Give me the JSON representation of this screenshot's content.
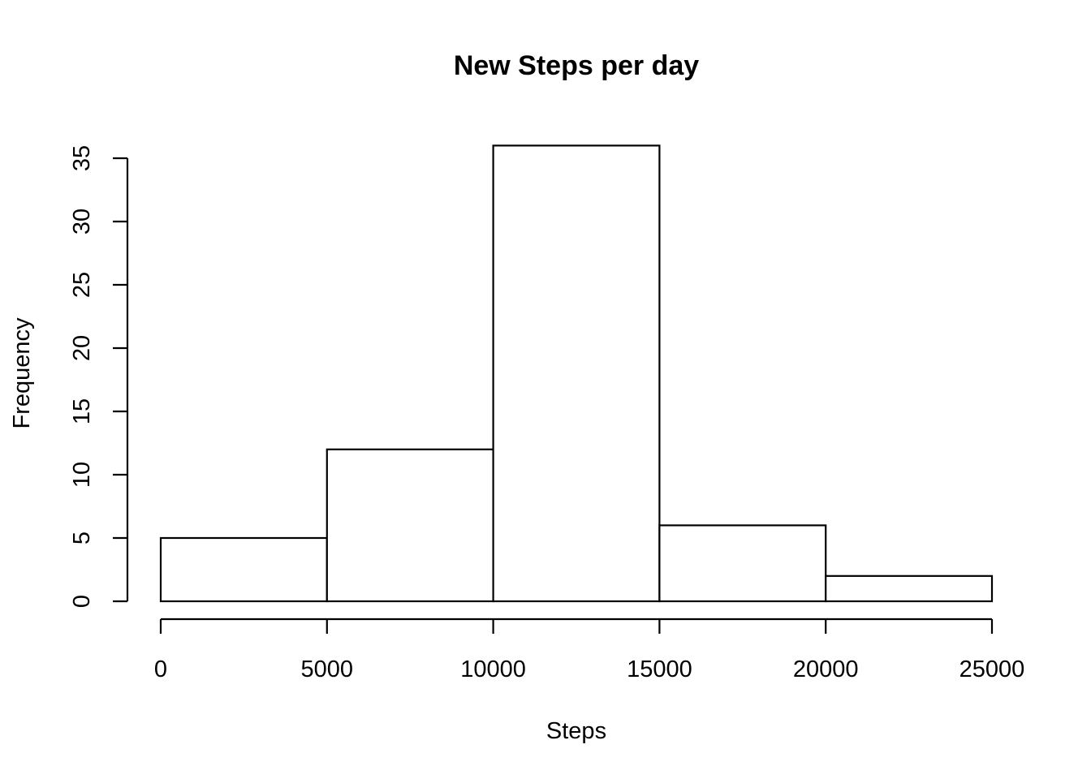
{
  "chart_data": {
    "type": "histogram",
    "title": "New Steps per day",
    "xlabel": "Steps",
    "ylabel": "Frequency",
    "bins": [
      {
        "x0": 0,
        "x1": 5000,
        "count": 5
      },
      {
        "x0": 5000,
        "x1": 10000,
        "count": 12
      },
      {
        "x0": 10000,
        "x1": 15000,
        "count": 36
      },
      {
        "x0": 15000,
        "x1": 20000,
        "count": 6
      },
      {
        "x0": 20000,
        "x1": 25000,
        "count": 2
      }
    ],
    "xlim": [
      0,
      25000
    ],
    "ylim": [
      0,
      35
    ],
    "x_ticks": [
      0,
      5000,
      10000,
      15000,
      20000,
      25000
    ],
    "y_ticks": [
      0,
      5,
      10,
      15,
      20,
      25,
      30,
      35
    ],
    "x_tick_labels": [
      "0",
      "5000",
      "10000",
      "15000",
      "20000",
      "25000"
    ],
    "y_tick_labels": [
      "0",
      "5",
      "10",
      "15",
      "20",
      "25",
      "30",
      "35"
    ],
    "grid": false,
    "legend": "none",
    "bar_fill": "#ffffff",
    "bar_stroke": "#000000"
  }
}
